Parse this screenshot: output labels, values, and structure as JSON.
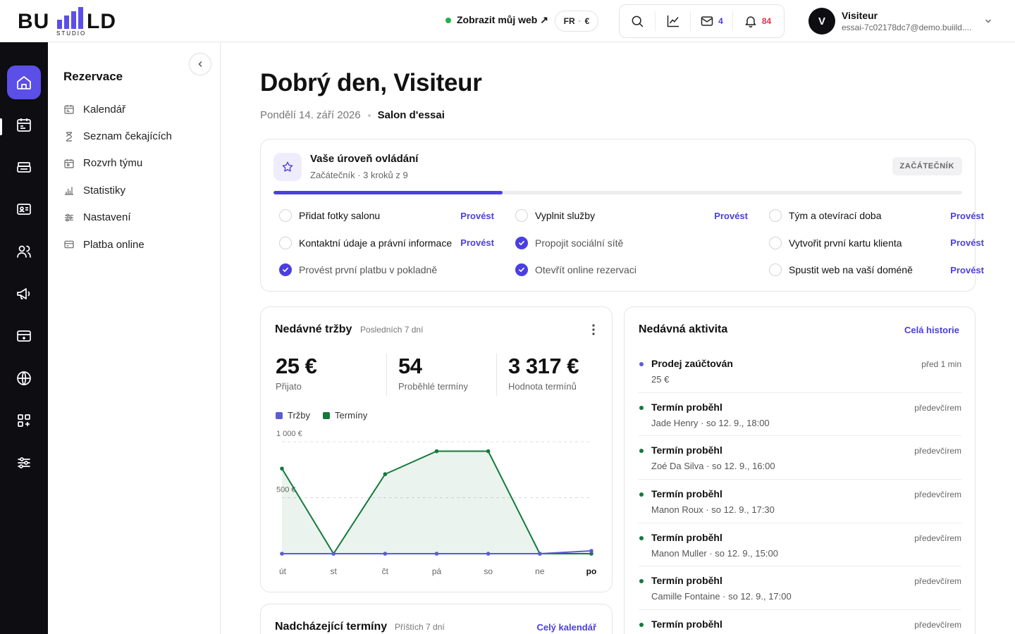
{
  "brand": {
    "logo_main": "BU LD",
    "logo_sub": "STUDIO"
  },
  "topbar": {
    "view_site": "Zobrazit můj web ↗",
    "lang": "FR",
    "currency": "€",
    "messages_count": "4",
    "notifications_count": "84",
    "user_initial": "V",
    "user_name": "Visiteur",
    "user_email": "essai-7c02178dc7@demo.buiild...."
  },
  "sidebar": {
    "title": "Rezervace",
    "items": [
      {
        "label": "Kalendář",
        "icon": "calendar-icon"
      },
      {
        "label": "Seznam čekajících",
        "icon": "hourglass-icon"
      },
      {
        "label": "Rozvrh týmu",
        "icon": "team-calendar-icon"
      },
      {
        "label": "Statistiky",
        "icon": "stats-icon"
      },
      {
        "label": "Nastavení",
        "icon": "sliders-icon"
      },
      {
        "label": "Platba online",
        "icon": "card-icon"
      }
    ]
  },
  "main": {
    "greeting": "Dobrý den, Visiteur",
    "date": "Pondělí 14. září 2026",
    "salon": "Salon d'essai"
  },
  "mastery": {
    "title": "Vaše úroveň ovládání",
    "subtitle": "Začátečník · 3 kroků z 9",
    "badge": "ZAČÁTEČNÍK",
    "progress": 0.333,
    "action_label": "Provést",
    "tasks": [
      {
        "label": "Přidat fotky salonu",
        "done": false
      },
      {
        "label": "Vyplnit služby",
        "done": false
      },
      {
        "label": "Tým a otevírací doba",
        "done": false
      },
      {
        "label": "Kontaktní údaje a právní informace",
        "done": false
      },
      {
        "label": "Propojit sociální sítě",
        "done": true
      },
      {
        "label": "Vytvořit první kartu klienta",
        "done": false
      },
      {
        "label": "Provést první platbu v pokladně",
        "done": true
      },
      {
        "label": "Otevřít online rezervaci",
        "done": true
      },
      {
        "label": "Spustit web na vaší doméně",
        "done": false
      }
    ]
  },
  "sales": {
    "title": "Nedávné tržby",
    "period": "Posledních 7 dní",
    "kpis": [
      {
        "value": "25 €",
        "label": "Přijato"
      },
      {
        "value": "54",
        "label": "Proběhlé termíny"
      },
      {
        "value": "3 317 €",
        "label": "Hodnota termínů"
      }
    ]
  },
  "chart_data": {
    "type": "area",
    "categories": [
      "út",
      "st",
      "čt",
      "pá",
      "so",
      "ne",
      "po"
    ],
    "highlight_category": "po",
    "y_ticks": [
      {
        "value": 1000,
        "label": "1 000 €"
      },
      {
        "value": 500,
        "label": "500 €"
      }
    ],
    "ylim": [
      0,
      1000
    ],
    "legend": "top-left",
    "grid": true,
    "series": [
      {
        "name": "Tržby",
        "color": "#5b5bd6",
        "values": [
          0,
          0,
          0,
          0,
          0,
          0,
          25
        ]
      },
      {
        "name": "Termíny",
        "color": "#137a3c",
        "values": [
          760,
          0,
          710,
          915,
          915,
          0,
          0
        ],
        "first_segment_start": 500
      }
    ]
  },
  "upcoming": {
    "title": "Nadcházející termíny",
    "period": "Příštích 7 dní",
    "link": "Celý kalendář"
  },
  "activity": {
    "title": "Nedávná aktivita",
    "link": "Celá historie",
    "items": [
      {
        "title": "Prodej zaúčtován",
        "sub": "25 €",
        "time": "před 1 min",
        "color": "#5b5bd6"
      },
      {
        "title": "Termín proběhl",
        "sub": "Jade Henry · so 12. 9., 18:00",
        "time": "předevčírem",
        "color": "#137a3c"
      },
      {
        "title": "Termín proběhl",
        "sub": "Zoé Da Silva · so 12. 9., 16:00",
        "time": "předevčírem",
        "color": "#137a3c"
      },
      {
        "title": "Termín proběhl",
        "sub": "Manon Roux · so 12. 9., 17:30",
        "time": "předevčírem",
        "color": "#137a3c"
      },
      {
        "title": "Termín proběhl",
        "sub": "Manon Muller · so 12. 9., 15:00",
        "time": "předevčírem",
        "color": "#137a3c"
      },
      {
        "title": "Termín proběhl",
        "sub": "Camille Fontaine · so 12. 9., 17:00",
        "time": "předevčírem",
        "color": "#137a3c"
      },
      {
        "title": "Termín proběhl",
        "sub": "",
        "time": "předevčírem",
        "color": "#137a3c"
      }
    ]
  }
}
